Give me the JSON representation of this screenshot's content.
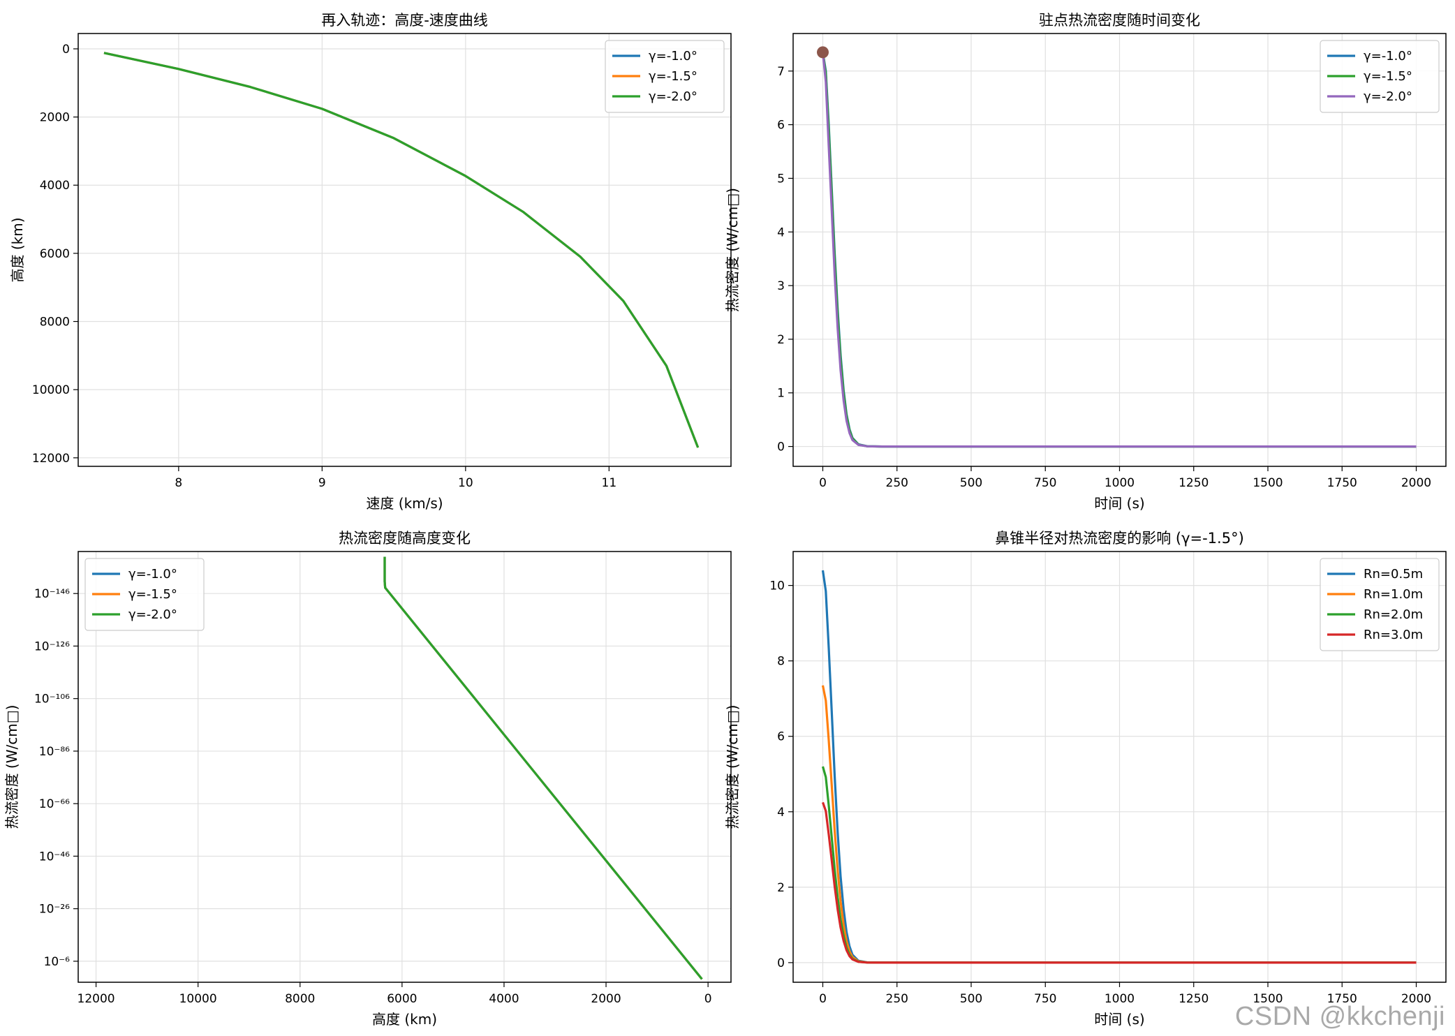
{
  "chart_data": [
    {
      "type": "line",
      "title": "再入轨迹：高度-速度曲线",
      "xlabel": "速度 (km/s)",
      "ylabel": "高度 (km)",
      "xlim": [
        7.3,
        11.85
      ],
      "ylim": [
        12250,
        -450
      ],
      "y_inverted": true,
      "x_ticks": [
        8,
        9,
        10,
        11
      ],
      "y_ticks": [
        0,
        2000,
        4000,
        6000,
        8000,
        10000,
        12000
      ],
      "grid": true,
      "legend": "upper-right",
      "series": [
        {
          "name": "γ=-1.0°",
          "color": "#1f77b4",
          "x": [
            7.48,
            8.0,
            8.5,
            9.0,
            9.5,
            10.0,
            10.4,
            10.8,
            11.1,
            11.4,
            11.62
          ],
          "y": [
            120,
            590,
            1120,
            1760,
            2620,
            3730,
            4780,
            6100,
            7400,
            9300,
            11700
          ]
        },
        {
          "name": "γ=-1.5°",
          "color": "#ff7f0e",
          "x": [
            7.48,
            8.0,
            8.5,
            9.0,
            9.5,
            10.0,
            10.4,
            10.8,
            11.1,
            11.4,
            11.62
          ],
          "y": [
            120,
            590,
            1120,
            1760,
            2620,
            3730,
            4780,
            6100,
            7400,
            9300,
            11700
          ]
        },
        {
          "name": "γ=-2.0°",
          "color": "#2ca02c",
          "x": [
            7.48,
            8.0,
            8.5,
            9.0,
            9.5,
            10.0,
            10.4,
            10.8,
            11.1,
            11.4,
            11.62
          ],
          "y": [
            120,
            590,
            1120,
            1760,
            2620,
            3730,
            4780,
            6100,
            7400,
            9300,
            11700
          ]
        }
      ]
    },
    {
      "type": "line",
      "title": "驻点热流密度随时间变化",
      "xlabel": "时间 (s)",
      "ylabel": "热流密度 (W/cm□)",
      "xlim": [
        -100,
        2100
      ],
      "ylim": [
        -0.37,
        7.7
      ],
      "x_ticks": [
        0,
        250,
        500,
        750,
        1000,
        1250,
        1500,
        1750,
        2000
      ],
      "y_ticks": [
        0,
        1,
        2,
        3,
        4,
        5,
        6,
        7
      ],
      "grid": true,
      "legend": "upper-right",
      "series": [
        {
          "name": "γ=-1.0°",
          "color": "#1f77b4",
          "x": [
            0,
            10,
            20,
            30,
            40,
            50,
            60,
            70,
            80,
            90,
            100,
            120,
            150,
            200,
            500,
            1000,
            1500,
            2000
          ],
          "y": [
            7.35,
            7.0,
            6.0,
            4.8,
            3.6,
            2.55,
            1.7,
            1.05,
            0.6,
            0.32,
            0.16,
            0.04,
            0.005,
            0,
            0,
            0,
            0,
            0
          ]
        },
        {
          "name": "γ=-1.5°",
          "color": "#2ca02c",
          "x": [
            0,
            10,
            20,
            30,
            40,
            50,
            60,
            70,
            80,
            90,
            100,
            120,
            150,
            200,
            500,
            1000,
            1500,
            2000
          ],
          "y": [
            7.35,
            6.95,
            5.9,
            4.7,
            3.5,
            2.45,
            1.62,
            1.0,
            0.57,
            0.3,
            0.15,
            0.035,
            0.004,
            0,
            0,
            0,
            0,
            0
          ]
        },
        {
          "name": "γ=-2.0°",
          "color": "#9467bd",
          "x": [
            0,
            10,
            20,
            30,
            40,
            50,
            60,
            70,
            80,
            90,
            100,
            120,
            150,
            200,
            500,
            1000,
            1500,
            2000
          ],
          "y": [
            7.35,
            6.8,
            5.6,
            4.4,
            3.2,
            2.2,
            1.42,
            0.86,
            0.48,
            0.25,
            0.12,
            0.03,
            0.003,
            0,
            0,
            0,
            0,
            0
          ]
        }
      ],
      "marker": {
        "x": 0,
        "y": 7.35,
        "color": "#8c564b"
      }
    },
    {
      "type": "line",
      "title": "热流密度随高度变化",
      "xlabel": "高度 (km)",
      "ylabel": "热流密度 (W/cm□)",
      "xlim": [
        12350,
        -450
      ],
      "x_inverted": true,
      "y_scale": "log",
      "ylim_exponent": [
        2,
        -162
      ],
      "y_inverted": true,
      "x_ticks": [
        12000,
        10000,
        8000,
        6000,
        4000,
        2000,
        0
      ],
      "y_ticks": [
        -6,
        -26,
        -46,
        -66,
        -86,
        -106,
        -126,
        -146
      ],
      "y_tick_labels": [
        "10⁻⁶",
        "10⁻²⁶",
        "10⁻⁴⁶",
        "10⁻⁶⁶",
        "10⁻⁸⁶",
        "10⁻¹⁰⁶",
        "10⁻¹²⁶",
        "10⁻¹⁴⁶"
      ],
      "grid": true,
      "legend": "upper-left",
      "series": [
        {
          "name": "γ=-1.0°",
          "color": "#1f77b4",
          "x": [
            120,
            6330,
            6340,
            6340
          ],
          "y_exponent": [
            0.8,
            -148.2,
            -150.5,
            -160
          ]
        },
        {
          "name": "γ=-1.5°",
          "color": "#ff7f0e",
          "x": [
            120,
            6330,
            6340,
            6340
          ],
          "y_exponent": [
            0.8,
            -148.2,
            -150.5,
            -160
          ]
        },
        {
          "name": "γ=-2.0°",
          "color": "#2ca02c",
          "x": [
            120,
            6330,
            6340,
            6340
          ],
          "y_exponent": [
            0.8,
            -148.2,
            -150.5,
            -160
          ]
        }
      ]
    },
    {
      "type": "line",
      "title": "鼻锥半径对热流密度的影响 (γ=-1.5°)",
      "xlabel": "时间 (s)",
      "ylabel": "热流密度 (W/cm□)",
      "xlim": [
        -100,
        2100
      ],
      "ylim": [
        -0.52,
        10.9
      ],
      "x_ticks": [
        0,
        250,
        500,
        750,
        1000,
        1250,
        1500,
        1750,
        2000
      ],
      "y_ticks": [
        0,
        2,
        4,
        6,
        8,
        10
      ],
      "grid": true,
      "legend": "upper-right",
      "series": [
        {
          "name": "Rn=0.5m",
          "color": "#1f77b4",
          "x": [
            0,
            10,
            20,
            30,
            40,
            50,
            60,
            70,
            80,
            90,
            100,
            120,
            150,
            200,
            500,
            1000,
            1500,
            2000
          ],
          "y": [
            10.4,
            9.85,
            8.35,
            6.65,
            4.95,
            3.45,
            2.28,
            1.42,
            0.81,
            0.43,
            0.21,
            0.05,
            0.005,
            0,
            0,
            0,
            0,
            0
          ]
        },
        {
          "name": "Rn=1.0m",
          "color": "#ff7f0e",
          "x": [
            0,
            10,
            20,
            30,
            40,
            50,
            60,
            70,
            80,
            90,
            100,
            120,
            150,
            200,
            500,
            1000,
            1500,
            2000
          ],
          "y": [
            7.35,
            6.95,
            5.9,
            4.7,
            3.5,
            2.45,
            1.62,
            1.0,
            0.57,
            0.3,
            0.15,
            0.035,
            0.004,
            0,
            0,
            0,
            0,
            0
          ]
        },
        {
          "name": "Rn=2.0m",
          "color": "#2ca02c",
          "x": [
            0,
            10,
            20,
            30,
            40,
            50,
            60,
            70,
            80,
            90,
            100,
            120,
            150,
            200,
            500,
            1000,
            1500,
            2000
          ],
          "y": [
            5.2,
            4.92,
            4.17,
            3.32,
            2.47,
            1.73,
            1.14,
            0.71,
            0.4,
            0.21,
            0.1,
            0.025,
            0.003,
            0,
            0,
            0,
            0,
            0
          ]
        },
        {
          "name": "Rn=3.0m",
          "color": "#d62728",
          "x": [
            0,
            10,
            20,
            30,
            40,
            50,
            60,
            70,
            80,
            90,
            100,
            120,
            150,
            200,
            500,
            1000,
            1500,
            2000
          ],
          "y": [
            4.25,
            4.02,
            3.4,
            2.71,
            2.02,
            1.41,
            0.93,
            0.58,
            0.33,
            0.17,
            0.085,
            0.02,
            0.002,
            0,
            0,
            0,
            0,
            0
          ]
        }
      ]
    }
  ],
  "watermark": "CSDN @kkchenji"
}
